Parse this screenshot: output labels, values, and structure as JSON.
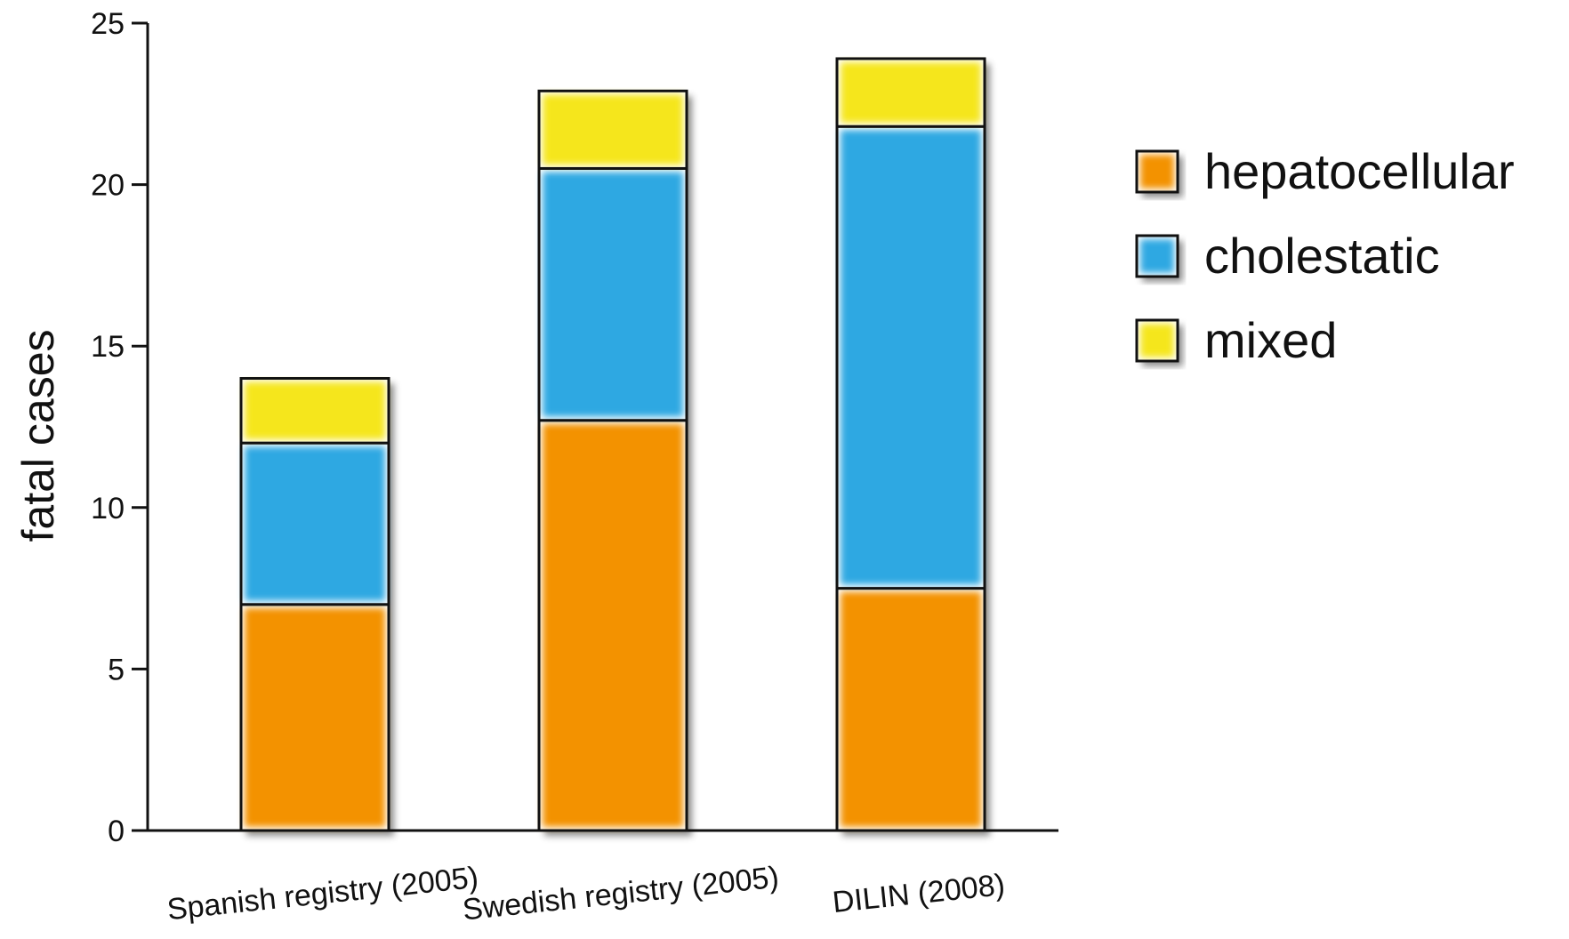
{
  "chart_data": {
    "type": "bar",
    "stacked": true,
    "title": "",
    "xlabel": "",
    "ylabel": "fatal cases",
    "categories": [
      "Spanish registry (2005)",
      "Swedish registry (2005)",
      "DILIN (2008)"
    ],
    "series": [
      {
        "name": "hepatocellular",
        "color": "#F39200",
        "values": [
          7,
          12.7,
          7.5
        ]
      },
      {
        "name": "cholestatic",
        "color": "#2EA8E2",
        "values": [
          5,
          7.8,
          14.3
        ]
      },
      {
        "name": "mixed",
        "color": "#F5E61E",
        "values": [
          2,
          2.4,
          2.1
        ]
      }
    ],
    "ylim": [
      0,
      25
    ],
    "yticks": [
      0,
      5,
      10,
      15,
      20,
      25
    ],
    "grid": false,
    "legend_position": "right"
  }
}
